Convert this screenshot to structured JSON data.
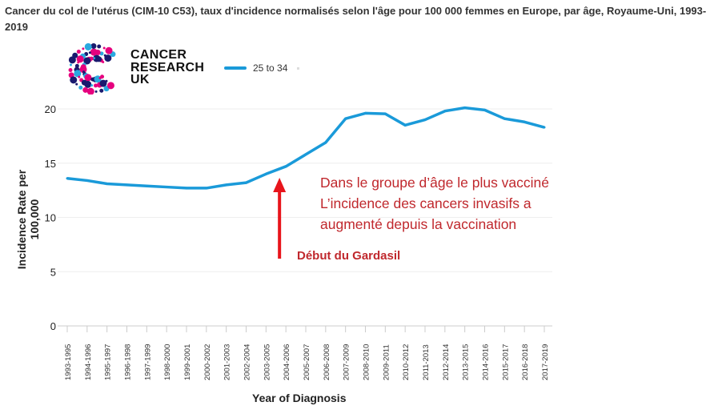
{
  "title": "Cancer du col de l'utérus (CIM-10 C53), taux d'incidence normalisés selon l'âge pour 100 000 femmes en Europe, par âge, Royaume-Uni, 1993-2019",
  "logo": {
    "line1": "CANCER",
    "line2": "RESEARCH",
    "line3": "UK"
  },
  "annotations": {
    "line1": "Dans le groupe d’âge le plus vacciné",
    "line2": "L’incidence des cancers invasifs a",
    "line3": "augmenté depuis la vaccination",
    "arrow_label": "Début du Gardasil"
  },
  "colors": {
    "line": "#1a9ad9",
    "annotation": "#c0282d",
    "arrow": "#e8141b"
  },
  "chart_data": {
    "type": "line",
    "title": "Cancer du col de l'utérus (CIM-10 C53), taux d'incidence normalisés selon l'âge pour 100 000 femmes en Europe, par âge, Royaume-Uni, 1993-2019",
    "xlabel": "Year of Diagnosis",
    "ylabel": "Incidence Rate per 100,000",
    "ylim": [
      0,
      20
    ],
    "yticks": [
      0,
      5,
      10,
      15,
      20
    ],
    "grid": true,
    "legend": "top-left",
    "categories": [
      "1993-1995",
      "1994-1996",
      "1995-1997",
      "1996-1998",
      "1997-1999",
      "1998-2000",
      "1999-2001",
      "2000-2002",
      "2001-2003",
      "2002-2004",
      "2003-2005",
      "2004-2006",
      "2005-2007",
      "2006-2008",
      "2007-2009",
      "2008-2010",
      "2009-2011",
      "2010-2012",
      "2011-2013",
      "2012-2014",
      "2013-2015",
      "2014-2016",
      "2015-2017",
      "2016-2018",
      "2017-2019"
    ],
    "series": [
      {
        "name": "25 to 34",
        "values": [
          13.6,
          13.4,
          13.1,
          13.0,
          12.9,
          12.8,
          12.7,
          12.7,
          13.0,
          13.2,
          14.0,
          14.7,
          15.8,
          16.9,
          19.1,
          19.6,
          19.55,
          18.5,
          19.0,
          19.8,
          20.1,
          19.9,
          19.1,
          18.8,
          18.3
        ]
      }
    ],
    "arrow_category": "2004-2006"
  }
}
